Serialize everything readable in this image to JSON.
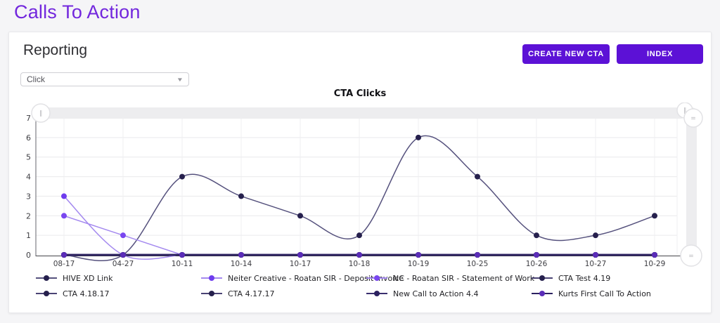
{
  "page": {
    "title": "Calls To Action"
  },
  "card": {
    "heading": "Reporting",
    "buttons": {
      "create": "CREATE NEW CTA",
      "index": "INDEX"
    },
    "select": {
      "value": "Click",
      "caret_icon": "▼"
    }
  },
  "colors": {
    "accent": "#5c11d6",
    "title_purple": "#7227dd"
  },
  "chart_data": {
    "type": "line",
    "title": "CTA Clicks",
    "categories": [
      "08-17",
      "04-27",
      "10-11",
      "10-14",
      "10-17",
      "10-18",
      "10-19",
      "10-25",
      "10-26",
      "10-27",
      "10-29"
    ],
    "ylim": [
      0,
      7
    ],
    "yticks": [
      0,
      1,
      2,
      3,
      4,
      5,
      6,
      7
    ],
    "grid": true,
    "legend_position": "bottom",
    "scrollbars": {
      "pause_glyph": "∥",
      "equals_glyph": "="
    },
    "series": [
      {
        "name": "HIVE XD Link",
        "values": [
          0,
          0,
          4,
          3,
          2,
          1,
          6,
          4,
          1,
          1,
          2
        ],
        "line_color": "#55517d",
        "marker_color": "#26204d"
      },
      {
        "name": "Neiter Creative - Roatan SIR - Deposit Invoice",
        "values": [
          3,
          0,
          0,
          null,
          null,
          null,
          null,
          null,
          null,
          null,
          null
        ],
        "line_color": "#a489ef",
        "marker_color": "#6e3cee"
      },
      {
        "name": "NC - Roatan SIR - Statement of Work",
        "values": [
          2,
          1,
          0,
          null,
          null,
          null,
          null,
          null,
          null,
          null,
          null
        ],
        "line_color": "#a489ef",
        "marker_color": "#7a47f0"
      },
      {
        "name": "CTA Test 4.19",
        "values": [
          0,
          0,
          0,
          0,
          0,
          0,
          0,
          0,
          0,
          0,
          0
        ],
        "line_color": "#4a4374",
        "marker_color": "#26204d"
      },
      {
        "name": "CTA 4.18.17",
        "values": [
          0,
          0,
          0,
          0,
          0,
          0,
          0,
          0,
          0,
          0,
          0
        ],
        "line_color": "#4a4374",
        "marker_color": "#26204d"
      },
      {
        "name": "CTA 4.17.17",
        "values": [
          0,
          0,
          0,
          0,
          0,
          0,
          0,
          0,
          0,
          0,
          0
        ],
        "line_color": "#4a4374",
        "marker_color": "#26204d"
      },
      {
        "name": "New Call to Action 4.4",
        "values": [
          0,
          0,
          0,
          0,
          0,
          0,
          0,
          0,
          0,
          0,
          0
        ],
        "line_color": "#3a2f6e",
        "marker_color": "#2c2160"
      },
      {
        "name": "Kurts First Call To Action",
        "values": [
          0,
          0,
          0,
          0,
          0,
          0,
          0,
          0,
          0,
          0,
          0
        ],
        "line_color": "#2c2160",
        "marker_color": "#5b2db8"
      }
    ]
  }
}
